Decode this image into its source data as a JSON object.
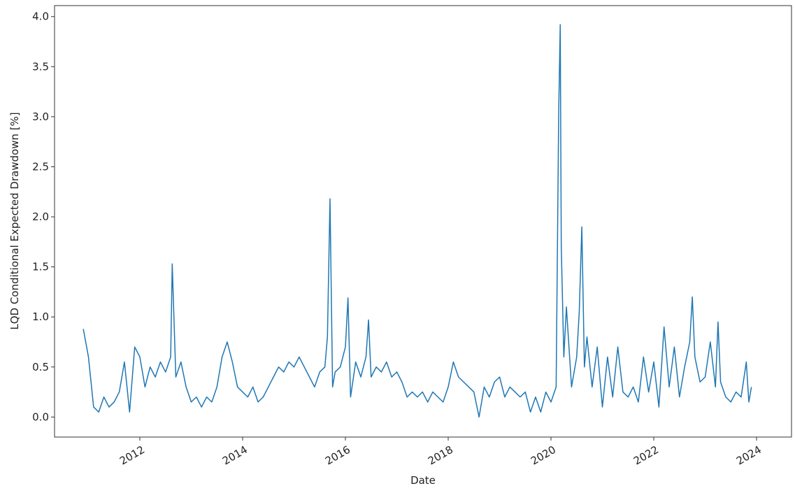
{
  "chart_data": {
    "type": "line",
    "xlabel": "Date",
    "ylabel": "LQD Conditional Expected Drawdown [%]",
    "x": [
      2010.9,
      2011.0,
      2011.1,
      2011.2,
      2011.3,
      2011.4,
      2011.5,
      2011.6,
      2011.7,
      2011.8,
      2011.9,
      2012.0,
      2012.1,
      2012.2,
      2012.3,
      2012.4,
      2012.5,
      2012.6,
      2012.63,
      2012.7,
      2012.8,
      2012.9,
      2013.0,
      2013.1,
      2013.2,
      2013.3,
      2013.4,
      2013.5,
      2013.6,
      2013.7,
      2013.8,
      2013.9,
      2014.0,
      2014.1,
      2014.2,
      2014.3,
      2014.4,
      2014.5,
      2014.6,
      2014.7,
      2014.8,
      2014.9,
      2015.0,
      2015.1,
      2015.2,
      2015.3,
      2015.4,
      2015.5,
      2015.6,
      2015.65,
      2015.7,
      2015.75,
      2015.8,
      2015.9,
      2016.0,
      2016.05,
      2016.1,
      2016.2,
      2016.3,
      2016.4,
      2016.45,
      2016.5,
      2016.6,
      2016.7,
      2016.8,
      2016.9,
      2017.0,
      2017.1,
      2017.2,
      2017.3,
      2017.4,
      2017.5,
      2017.6,
      2017.7,
      2017.8,
      2017.9,
      2018.0,
      2018.1,
      2018.2,
      2018.3,
      2018.4,
      2018.5,
      2018.6,
      2018.7,
      2018.8,
      2018.9,
      2019.0,
      2019.1,
      2019.2,
      2019.3,
      2019.4,
      2019.5,
      2019.6,
      2019.7,
      2019.8,
      2019.9,
      2020.0,
      2020.1,
      2020.15,
      2020.18,
      2020.2,
      2020.25,
      2020.3,
      2020.4,
      2020.5,
      2020.55,
      2020.6,
      2020.65,
      2020.7,
      2020.8,
      2020.9,
      2021.0,
      2021.1,
      2021.2,
      2021.3,
      2021.4,
      2021.5,
      2021.6,
      2021.7,
      2021.8,
      2021.9,
      2022.0,
      2022.1,
      2022.2,
      2022.3,
      2022.4,
      2022.5,
      2022.6,
      2022.7,
      2022.75,
      2022.8,
      2022.9,
      2023.0,
      2023.1,
      2023.2,
      2023.25,
      2023.3,
      2023.4,
      2023.5,
      2023.6,
      2023.7,
      2023.8,
      2023.85,
      2023.9
    ],
    "series": [
      {
        "name": "LQD",
        "color": "#1f77b4",
        "values": [
          0.88,
          0.6,
          0.1,
          0.05,
          0.2,
          0.1,
          0.15,
          0.25,
          0.55,
          0.05,
          0.7,
          0.6,
          0.3,
          0.5,
          0.4,
          0.55,
          0.45,
          0.6,
          1.53,
          0.4,
          0.55,
          0.3,
          0.15,
          0.2,
          0.1,
          0.2,
          0.15,
          0.3,
          0.6,
          0.75,
          0.55,
          0.3,
          0.25,
          0.2,
          0.3,
          0.15,
          0.2,
          0.3,
          0.4,
          0.5,
          0.45,
          0.55,
          0.5,
          0.6,
          0.5,
          0.4,
          0.3,
          0.45,
          0.5,
          0.8,
          2.18,
          0.3,
          0.45,
          0.5,
          0.7,
          1.19,
          0.2,
          0.55,
          0.4,
          0.6,
          0.97,
          0.4,
          0.5,
          0.45,
          0.55,
          0.4,
          0.45,
          0.35,
          0.2,
          0.25,
          0.2,
          0.25,
          0.15,
          0.25,
          0.2,
          0.15,
          0.3,
          0.55,
          0.4,
          0.35,
          0.3,
          0.25,
          0.0,
          0.3,
          0.2,
          0.35,
          0.4,
          0.2,
          0.3,
          0.25,
          0.2,
          0.25,
          0.05,
          0.2,
          0.05,
          0.25,
          0.15,
          0.3,
          3.04,
          3.92,
          1.7,
          0.6,
          1.1,
          0.3,
          0.6,
          1.05,
          1.9,
          0.5,
          0.8,
          0.3,
          0.7,
          0.1,
          0.6,
          0.2,
          0.7,
          0.25,
          0.2,
          0.3,
          0.15,
          0.6,
          0.25,
          0.55,
          0.1,
          0.9,
          0.3,
          0.7,
          0.2,
          0.5,
          0.75,
          1.2,
          0.6,
          0.35,
          0.4,
          0.75,
          0.3,
          0.95,
          0.35,
          0.2,
          0.15,
          0.25,
          0.2,
          0.55,
          0.15,
          0.3
        ]
      }
    ],
    "xlim": [
      2010.34,
      2024.68
    ],
    "xticks": [
      2012,
      2014,
      2016,
      2018,
      2020,
      2022,
      2024
    ],
    "ylim": [
      -0.2,
      4.11
    ],
    "yticks": [
      {
        "value": 0,
        "label": "0.0"
      },
      0.5,
      {
        "value": 1,
        "label": "1.0"
      },
      1.5,
      {
        "value": 2,
        "label": "2.0"
      },
      2.5,
      {
        "value": 3,
        "label": "3.0"
      },
      3.5,
      {
        "value": 4,
        "label": "4.0"
      }
    ],
    "grid": false
  }
}
